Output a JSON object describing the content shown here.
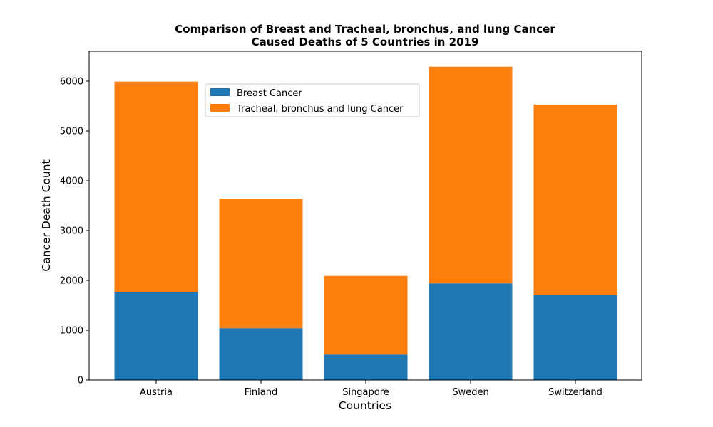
{
  "chart_data": {
    "type": "bar",
    "stacked": true,
    "title_lines": [
      "Comparison of Breast and Tracheal, bronchus, and lung Cancer",
      "Caused Deaths of 5 Countries in 2019"
    ],
    "xlabel": "Countries",
    "ylabel": "Cancer Death Count",
    "categories": [
      "Austria",
      "Finland",
      "Singapore",
      "Sweden",
      "Switzerland"
    ],
    "series": [
      {
        "name": "Breast Cancer",
        "color": "#1f77b4",
        "values": [
          1770,
          1040,
          510,
          1940,
          1700
        ]
      },
      {
        "name": "Tracheal, bronchus and lung Cancer",
        "color": "#ff7f0e",
        "values": [
          4220,
          2600,
          1580,
          4350,
          3830
        ]
      }
    ],
    "ylim": [
      0,
      6600
    ],
    "yticks": [
      0,
      1000,
      2000,
      3000,
      4000,
      5000,
      6000
    ],
    "grid": false,
    "legend_position": "upper-center"
  }
}
